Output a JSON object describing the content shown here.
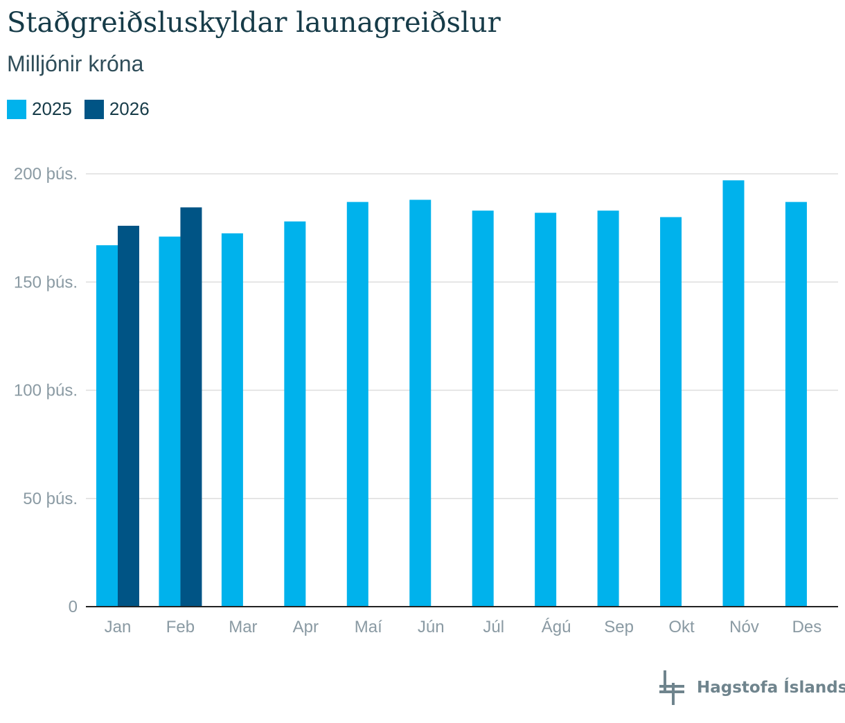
{
  "colors": {
    "series_2025": "#00b2ec",
    "series_2026": "#005485",
    "title": "#163b48",
    "grid": "#dedede",
    "axis": "#222222",
    "tick": "#8a9aa3",
    "logo": "#6f848d"
  },
  "logo": {
    "icon": "hagstofa-logo-icon",
    "text": "Hagstofa Íslands"
  },
  "chart_data": {
    "type": "bar",
    "title": "Staðgreiðsluskyldar launagreiðslur",
    "subtitle": "Milljónir króna",
    "categories": [
      "Jan",
      "Feb",
      "Mar",
      "Apr",
      "Maí",
      "Jún",
      "Júl",
      "Ágú",
      "Sep",
      "Okt",
      "Nóv",
      "Des"
    ],
    "series": [
      {
        "name": "2025",
        "values": [
          167000,
          171000,
          172500,
          178000,
          187000,
          188000,
          183000,
          182000,
          183000,
          180000,
          197000,
          187000
        ]
      },
      {
        "name": "2026",
        "values": [
          176000,
          184500,
          null,
          null,
          null,
          null,
          null,
          null,
          null,
          null,
          null,
          null
        ]
      }
    ],
    "ylim": [
      0,
      200000
    ],
    "yticks": [
      0,
      50000,
      100000,
      150000,
      200000
    ],
    "ytick_labels": [
      "0",
      "50 þús.",
      "100 þús.",
      "150 þús.",
      "200 þús."
    ],
    "xlabel": "",
    "ylabel": "",
    "grid": true,
    "legend": "top-left"
  }
}
